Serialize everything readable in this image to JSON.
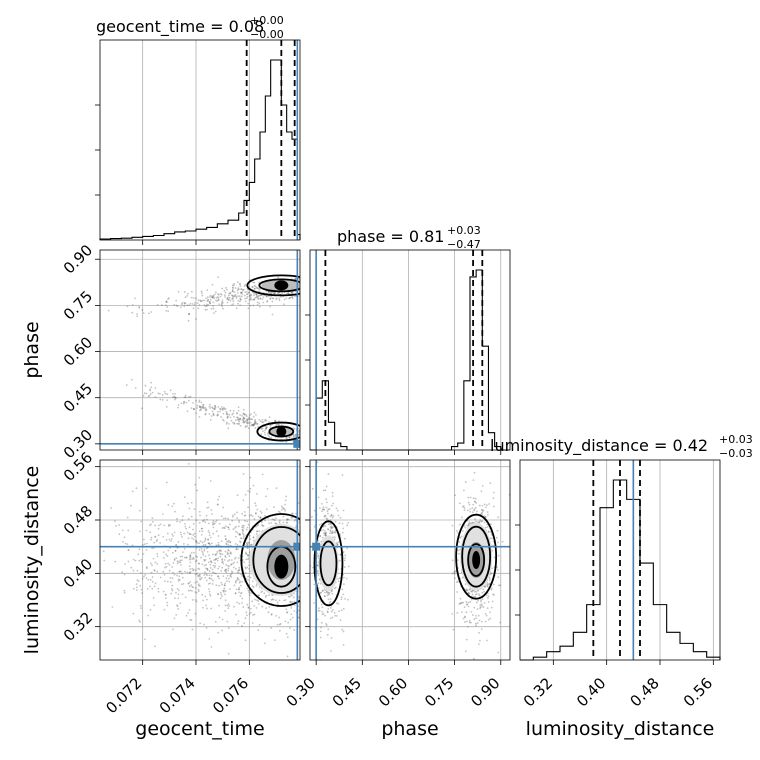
{
  "chart_data": {
    "type": "corner",
    "parameters": [
      {
        "name": "geocent_time",
        "xlabel": "geocent_time",
        "title_base": "geocent_time = 0.08",
        "title_plus": "+0.00",
        "title_minus": "−0.00",
        "range": [
          0.0704,
          0.0779
        ],
        "ticks": [
          0.072,
          0.074,
          0.076
        ],
        "tick_labels": [
          "0.072",
          "0.074",
          "0.076"
        ],
        "quantiles": [
          0.0759,
          0.0772,
          0.0777
        ],
        "truth": 0.0778,
        "hist_edges": [
          0.0704,
          0.0708,
          0.0712,
          0.0716,
          0.072,
          0.0724,
          0.0728,
          0.0732,
          0.0736,
          0.074,
          0.0744,
          0.0748,
          0.0752,
          0.0756,
          0.0758,
          0.076,
          0.0762,
          0.0764,
          0.0766,
          0.0768,
          0.077,
          0.0772,
          0.0774,
          0.0776,
          0.0778,
          0.0779
        ],
        "hist_counts": [
          0.5,
          0.8,
          1,
          1.5,
          2,
          2.5,
          3.5,
          4.5,
          5,
          6,
          7,
          9,
          11,
          15,
          22,
          32,
          45,
          60,
          80,
          100,
          100,
          75,
          60,
          56,
          3
        ]
      },
      {
        "name": "phase",
        "xlabel": "phase",
        "ylabel": "phase",
        "title_base": "phase = 0.81",
        "title_plus": "+0.03",
        "title_minus": "−0.47",
        "range": [
          0.28,
          0.93
        ],
        "ticks": [
          0.3,
          0.45,
          0.6,
          0.75,
          0.9
        ],
        "tick_labels": [
          "0.30",
          "0.45",
          "0.60",
          "0.75",
          "0.90"
        ],
        "quantiles": [
          0.33,
          0.81,
          0.84
        ],
        "truth": 0.3,
        "hist_edges": [
          0.28,
          0.3,
          0.32,
          0.34,
          0.36,
          0.38,
          0.4,
          0.42,
          0.44,
          0.46,
          0.48,
          0.5,
          0.52,
          0.54,
          0.56,
          0.58,
          0.6,
          0.62,
          0.64,
          0.66,
          0.68,
          0.7,
          0.72,
          0.74,
          0.76,
          0.78,
          0.8,
          0.82,
          0.84,
          0.86,
          0.88,
          0.9,
          0.92,
          0.93
        ],
        "hist_counts": [
          0,
          15,
          20,
          8,
          2,
          1,
          0,
          0,
          0,
          0,
          0,
          0,
          0,
          0,
          0,
          0,
          0,
          0,
          0,
          0,
          0,
          0,
          0,
          1,
          2,
          20,
          50,
          52,
          30,
          5,
          1,
          0,
          0
        ]
      },
      {
        "name": "luminosity_distance",
        "xlabel": "luminosity_distance",
        "ylabel": "luminosity_distance",
        "title_base": "luminosity_distance = 0.42",
        "title_plus": "+0.03",
        "title_minus": "−0.03",
        "range": [
          0.27,
          0.57
        ],
        "ticks": [
          0.32,
          0.4,
          0.48,
          0.56
        ],
        "tick_labels": [
          "0.32",
          "0.40",
          "0.48",
          "0.56"
        ],
        "quantiles": [
          0.38,
          0.42,
          0.45
        ],
        "truth": 0.44,
        "hist_edges": [
          0.27,
          0.29,
          0.31,
          0.33,
          0.35,
          0.37,
          0.39,
          0.41,
          0.43,
          0.45,
          0.47,
          0.49,
          0.51,
          0.53,
          0.55,
          0.57
        ],
        "hist_counts": [
          0,
          1,
          3,
          5,
          10,
          20,
          55,
          65,
          58,
          35,
          20,
          10,
          6,
          3,
          1
        ]
      }
    ],
    "grid": true
  }
}
